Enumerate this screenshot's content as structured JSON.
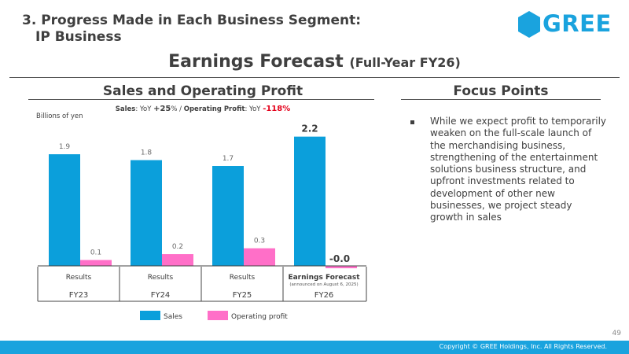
{
  "header": {
    "section_line1": "3. Progress Made in Each Business Segment:",
    "section_line2": "IP Business",
    "logo_text": "GREE",
    "main_title": "Earnings Forecast",
    "main_title_sub": "(Full-Year FY26)"
  },
  "left_panel": {
    "heading": "Sales and Operating Profit",
    "yoy": {
      "sales_label": "Sales",
      "sales_prefix": ": YoY ",
      "sales_value": "+25",
      "pct": "%",
      "separator": " / ",
      "op_label": "Operating Profit",
      "op_prefix": ": YoY ",
      "op_value": "-118"
    },
    "units": "Billions of yen"
  },
  "chart_data": {
    "type": "bar",
    "categories": [
      "FY23",
      "FY24",
      "FY25",
      "FY26"
    ],
    "period_labels": [
      "Results",
      "Results",
      "Results",
      "Earnings Forecast"
    ],
    "period_note": [
      "",
      "",
      "",
      "(announced on August 6, 2025)"
    ],
    "series": [
      {
        "name": "Sales",
        "values": [
          1.9,
          1.8,
          1.7,
          2.2
        ],
        "labels": [
          "1.9",
          "1.8",
          "1.7",
          "2.2"
        ],
        "color": "#0b9fdb"
      },
      {
        "name": "Operating profit",
        "values": [
          0.1,
          0.2,
          0.3,
          -0.04
        ],
        "labels": [
          "0.1",
          "0.2",
          "0.3",
          "-0.0"
        ],
        "color": "#ff6fc8"
      }
    ],
    "ylim": [
      -0.1,
      2.4
    ],
    "legend_position": "bottom"
  },
  "right_panel": {
    "heading": "Focus Points",
    "bullet": "While we expect profit to temporarily weaken on the full-scale launch of the merchandising business, strengthening of the entertainment solutions business structure, and upfront investments related to development of other new businesses, we project steady growth in sales"
  },
  "footer": {
    "page_number": "49",
    "copyright": "Copyright © GREE Holdings, Inc. All Rights Reserved."
  },
  "colors": {
    "brand_blue": "#1aa3de",
    "sales": "#0b9fdb",
    "op_profit": "#ff6fc8",
    "negative": "#e4001a"
  }
}
